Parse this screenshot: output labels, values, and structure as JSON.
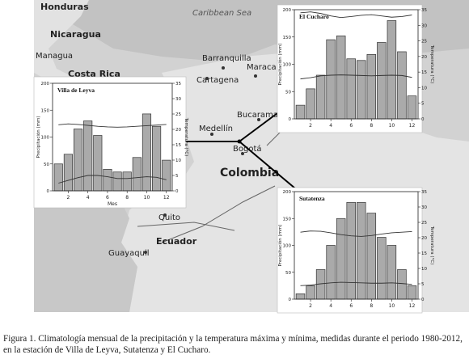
{
  "map": {
    "labels": [
      {
        "text": "Honduras",
        "kind": "country"
      },
      {
        "text": "Caribbean Sea",
        "kind": "sea"
      },
      {
        "text": "Nicaragua",
        "kind": "country"
      },
      {
        "text": "Managua",
        "kind": "city"
      },
      {
        "text": "Costa Rica",
        "kind": "country"
      },
      {
        "text": "Barranquilla",
        "kind": "city"
      },
      {
        "text": "Maraca",
        "kind": "city"
      },
      {
        "text": "Cartagena",
        "kind": "city"
      },
      {
        "text": "Bucaramanga",
        "kind": "city"
      },
      {
        "text": "Medellín",
        "kind": "city"
      },
      {
        "text": "Bogotá",
        "kind": "city"
      },
      {
        "text": "Colombia",
        "kind": "country-major"
      },
      {
        "text": "Quito",
        "kind": "city"
      },
      {
        "text": "Ecuador",
        "kind": "country"
      },
      {
        "text": "Guayaquil",
        "kind": "city"
      }
    ]
  },
  "chart_data": [
    {
      "type": "bar",
      "title": "Villa de Leyva",
      "xlabel": "Mes",
      "ylabel": "Precipitación (mm)",
      "y2label": "Temperatura (°C)",
      "categories": [
        1,
        2,
        3,
        4,
        5,
        6,
        7,
        8,
        9,
        10,
        11,
        12
      ],
      "xticks": [
        2,
        4,
        6,
        8,
        10,
        12
      ],
      "ylim": [
        0,
        200
      ],
      "yticks": [
        0,
        50,
        100,
        150,
        200
      ],
      "y2lim": [
        0,
        35
      ],
      "y2ticks": [
        0,
        5,
        10,
        15,
        20,
        25,
        30,
        35
      ],
      "series": [
        {
          "type": "bar",
          "values": [
            50,
            68,
            115,
            130,
            103,
            40,
            35,
            35,
            62,
            143,
            120,
            57
          ]
        },
        {
          "type": "line",
          "axis": "y2",
          "values": [
            21.5,
            21.8,
            21.6,
            21.3,
            21.0,
            20.8,
            20.7,
            20.8,
            21.0,
            21.2,
            21.4,
            21.6
          ]
        },
        {
          "type": "line",
          "axis": "y2",
          "values": [
            2.5,
            3.4,
            4.3,
            5.0,
            5.0,
            4.6,
            4.0,
            4.0,
            4.3,
            4.6,
            4.4,
            3.6
          ]
        }
      ],
      "box_color": "#ffffff",
      "bar_color": "#aaaaaa"
    },
    {
      "type": "bar",
      "title": "El Cucharo",
      "xlabel": "",
      "ylabel": "Precipitación (mm)",
      "y2label": "Temperatura (°C)",
      "categories": [
        1,
        2,
        3,
        4,
        5,
        6,
        7,
        8,
        9,
        10,
        11,
        12
      ],
      "xticks": [
        2,
        4,
        6,
        8,
        10,
        12
      ],
      "ylim": [
        0,
        200
      ],
      "yticks": [
        0,
        50,
        100,
        150,
        200
      ],
      "y2lim": [
        0,
        35
      ],
      "y2ticks": [
        0,
        5,
        10,
        15,
        20,
        25,
        30,
        35
      ],
      "series": [
        {
          "type": "bar",
          "values": [
            25,
            55,
            80,
            145,
            152,
            110,
            107,
            118,
            140,
            180,
            123,
            42
          ]
        },
        {
          "type": "line",
          "axis": "y2",
          "values": [
            34.0,
            34.3,
            33.8,
            33.0,
            32.5,
            32.8,
            33.2,
            33.4,
            33.0,
            32.6,
            32.8,
            33.3
          ]
        },
        {
          "type": "line",
          "axis": "y2",
          "values": [
            12.8,
            13.2,
            13.8,
            14.0,
            14.1,
            14.0,
            13.9,
            13.8,
            13.9,
            14.0,
            13.9,
            13.3
          ]
        }
      ],
      "box_color": "#ffffff",
      "bar_color": "#aaaaaa"
    },
    {
      "type": "bar",
      "title": "Sutatenza",
      "xlabel": "",
      "ylabel": "Precipitación (mm)",
      "y2label": "Temperatura (°C)",
      "categories": [
        1,
        2,
        3,
        4,
        5,
        6,
        7,
        8,
        9,
        10,
        11,
        12
      ],
      "xticks": [
        2,
        4,
        6,
        8,
        10,
        12
      ],
      "ylim": [
        0,
        200
      ],
      "yticks": [
        0,
        50,
        100,
        150,
        200
      ],
      "y2lim": [
        0,
        35
      ],
      "y2ticks": [
        0,
        5,
        10,
        15,
        20,
        25,
        30,
        35
      ],
      "series": [
        {
          "type": "bar",
          "values": [
            10,
            25,
            55,
            100,
            150,
            180,
            180,
            160,
            115,
            100,
            55,
            25
          ]
        },
        {
          "type": "line",
          "axis": "y2",
          "values": [
            21.8,
            22.2,
            22.1,
            21.6,
            21.0,
            20.6,
            20.4,
            20.7,
            21.2,
            21.6,
            21.8,
            22.0
          ]
        },
        {
          "type": "line",
          "axis": "y2",
          "values": [
            4.4,
            4.6,
            5.0,
            5.3,
            5.5,
            5.4,
            5.3,
            5.2,
            5.2,
            5.3,
            5.1,
            4.8
          ]
        }
      ],
      "box_color": "#ffffff",
      "bar_color": "#aaaaaa"
    }
  ],
  "caption": "Figura 1. Climatología mensual de la precipitación y la temperatura máxima y mínima, medidas durante el periodo 1980-2012, en la estación de Villa de Leyva, Sutatenza y El Cucharo."
}
